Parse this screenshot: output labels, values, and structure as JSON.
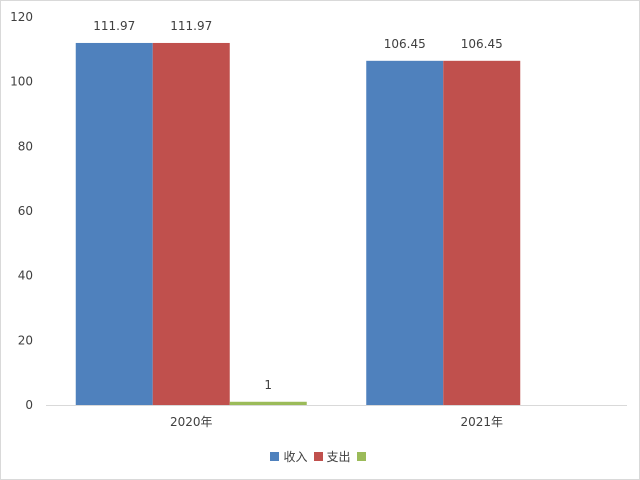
{
  "chart_data": {
    "type": "bar",
    "title": "",
    "xlabel": "",
    "ylabel": "",
    "categories": [
      "2020年",
      "2021年"
    ],
    "series": [
      {
        "name": "收入",
        "color": "#4f81bd",
        "values": [
          111.97,
          106.45
        ]
      },
      {
        "name": "支出",
        "color": "#c0504d",
        "values": [
          111.97,
          106.45
        ]
      },
      {
        "name": "",
        "color": "#9bbb59",
        "values": [
          1,
          null
        ]
      }
    ],
    "data_labels": [
      [
        "111.97",
        "106.45"
      ],
      [
        "111.97",
        "106.45"
      ],
      [
        "1",
        ""
      ]
    ],
    "ylim": [
      0,
      120
    ],
    "yticks": [
      0,
      20,
      40,
      60,
      80,
      100,
      120
    ],
    "ytick_labels": [
      "0",
      "20",
      "40",
      "60",
      "80",
      "100",
      "120"
    ],
    "grid": false,
    "legend_position": "bottom"
  }
}
